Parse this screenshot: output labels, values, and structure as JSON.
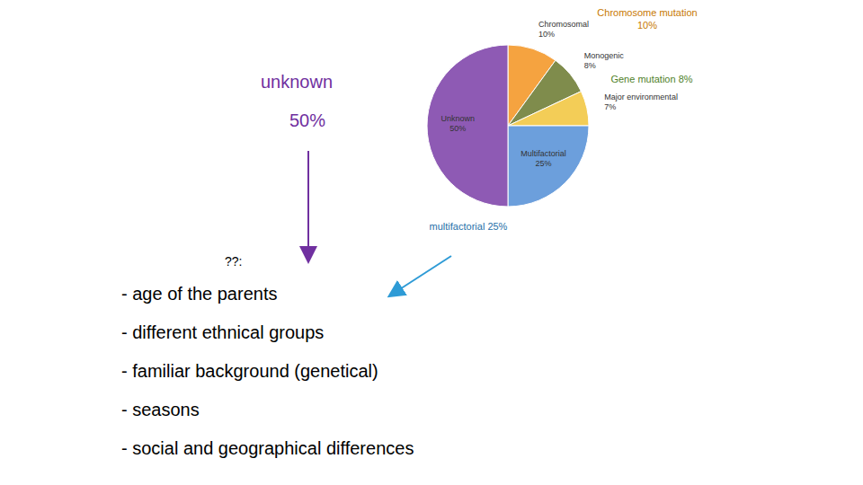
{
  "chart_data": {
    "type": "pie",
    "categories": [
      "Chromosomal",
      "Monogenic",
      "Major environmental",
      "Multifactorial",
      "Unknown"
    ],
    "values": [
      10,
      8,
      7,
      25,
      50
    ],
    "value_labels": [
      "10%",
      "8%",
      "7%",
      "25%",
      "50%"
    ],
    "colors": [
      "#f5a340",
      "#7f8c4c",
      "#f3cd57",
      "#6c9fdc",
      "#8e5ab4"
    ],
    "data_labels": true,
    "annotations": {
      "chromosome": [
        "Chromosome mutation",
        "10%"
      ],
      "gene": "Gene mutation 8%",
      "multifactorial": "multifactorial 25%",
      "unknown": [
        "unknown",
        "50%"
      ],
      "question": "??:",
      "factors": [
        "- age of the parents",
        "- different ethnical groups",
        "- familiar background (genetical)",
        "- seasons",
        "- social and geographical differences"
      ]
    }
  }
}
